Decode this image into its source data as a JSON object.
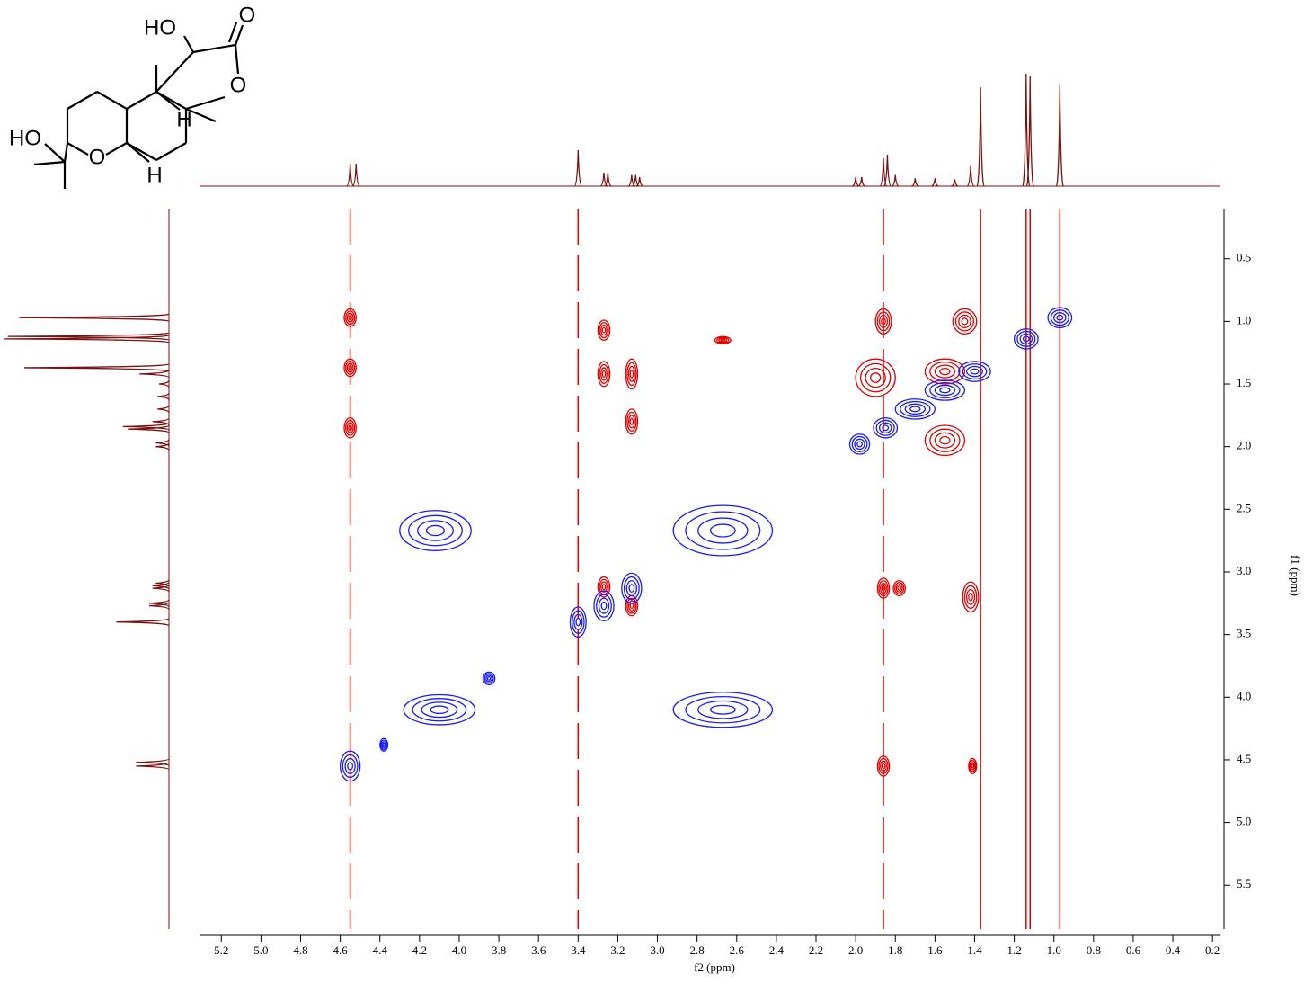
{
  "structure": {
    "labels": [
      "HO",
      "O",
      "O",
      "H",
      "HO",
      "O",
      "H"
    ]
  },
  "chart_data": {
    "type": "nmr2d",
    "xlabel": "f2 (ppm)",
    "ylabel": "f1 (ppm)",
    "xlim": [
      5.31,
      0.16
    ],
    "ylim": [
      0.1,
      5.85
    ],
    "xticks": [
      5.2,
      {
        "value": 5,
        "label": "5.0"
      },
      4.8,
      4.6,
      4.4,
      4.2,
      {
        "value": 4,
        "label": "4.0"
      },
      3.8,
      3.6,
      3.4,
      3.2,
      {
        "value": 3,
        "label": "3.0"
      },
      2.8,
      2.6,
      2.4,
      2.2,
      {
        "value": 2,
        "label": "2.0"
      },
      1.8,
      1.6,
      1.4,
      1.2,
      {
        "value": 1,
        "label": "1.0"
      },
      0.8,
      0.6,
      0.4,
      0.2
    ],
    "yticks": [
      0.5,
      {
        "value": 1,
        "label": "1.0"
      },
      1.5,
      {
        "value": 2,
        "label": "2.0"
      },
      2.5,
      {
        "value": 3,
        "label": "3.0"
      },
      3.5,
      {
        "value": 4,
        "label": "4.0"
      },
      4.5,
      {
        "value": 5,
        "label": "5.0"
      },
      5.5
    ],
    "projection": {
      "color": "#7a1010",
      "x": [
        4.55,
        4.52,
        3.4,
        3.27,
        3.25,
        3.13,
        3.11,
        3.09,
        2.0,
        1.97,
        1.86,
        1.84,
        1.8,
        1.7,
        1.6,
        1.5,
        1.42,
        1.37,
        1.14,
        1.12,
        0.97
      ],
      "values": [
        20,
        20,
        32,
        12,
        12,
        10,
        10,
        8,
        8,
        8,
        25,
        28,
        10,
        7,
        7,
        6,
        18,
        88,
        100,
        98,
        91
      ]
    },
    "positive_peaks": {
      "color": "#1a1aff",
      "x": [
        4.55,
        4.38,
        4.1,
        4.12,
        2.67,
        2.67,
        3.85,
        3.4,
        3.27,
        3.13,
        1.98,
        1.85,
        1.7,
        1.55,
        1.4,
        1.14,
        0.97
      ],
      "y": [
        4.55,
        4.38,
        4.1,
        2.67,
        4.1,
        2.67,
        3.85,
        3.4,
        3.27,
        3.13,
        1.98,
        1.85,
        1.7,
        1.55,
        1.4,
        1.14,
        0.97
      ],
      "x_width": [
        0.05,
        0.02,
        0.18,
        0.18,
        0.25,
        0.25,
        0.03,
        0.04,
        0.05,
        0.05,
        0.05,
        0.06,
        0.1,
        0.1,
        0.08,
        0.06,
        0.06
      ],
      "y_width": [
        0.12,
        0.05,
        0.12,
        0.16,
        0.14,
        0.2,
        0.05,
        0.12,
        0.12,
        0.12,
        0.08,
        0.08,
        0.08,
        0.08,
        0.08,
        0.08,
        0.08
      ]
    },
    "negative_peaks": {
      "color": "#e00000",
      "x": [
        4.55,
        4.55,
        4.55,
        3.27,
        3.27,
        3.13,
        3.13,
        2.67,
        1.86,
        1.9,
        1.45,
        1.55,
        1.55,
        1.86,
        1.78,
        1.42,
        1.86,
        1.41,
        3.27,
        3.13
      ],
      "y": [
        0.97,
        1.37,
        1.85,
        1.07,
        1.42,
        1.42,
        1.8,
        1.15,
        1.0,
        1.45,
        1.0,
        1.4,
        1.95,
        3.13,
        3.13,
        3.2,
        4.55,
        4.55,
        3.12,
        3.27
      ],
      "x_width": [
        0.03,
        0.03,
        0.03,
        0.03,
        0.03,
        0.03,
        0.03,
        0.04,
        0.04,
        0.1,
        0.06,
        0.1,
        0.1,
        0.03,
        0.03,
        0.04,
        0.03,
        0.02,
        0.03,
        0.03
      ],
      "y_width": [
        0.07,
        0.07,
        0.08,
        0.08,
        0.1,
        0.12,
        0.1,
        0.03,
        0.1,
        0.15,
        0.1,
        0.1,
        0.12,
        0.08,
        0.06,
        0.12,
        0.08,
        0.06,
        0.08,
        0.08
      ]
    },
    "ridges": {
      "color": "#e00000",
      "x": [
        4.55,
        3.4,
        1.86,
        1.37,
        1.14,
        1.12,
        0.97
      ]
    }
  }
}
